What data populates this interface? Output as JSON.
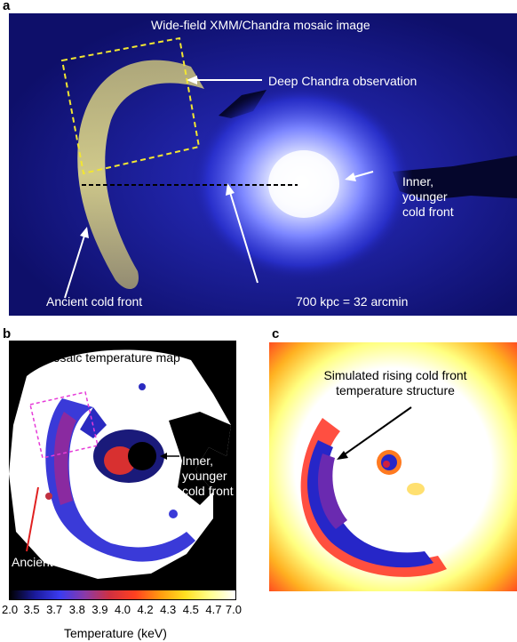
{
  "panel_a": {
    "letter": "a",
    "title": "Wide-field XMM/Chandra mosaic image",
    "label_deep": "Deep Chandra observation",
    "label_inner_1": "Inner,",
    "label_inner_2": "younger",
    "label_inner_3": "cold front",
    "label_ancient": "Ancient cold front",
    "label_scale": "700 kpc = 32 arcmin"
  },
  "panel_b": {
    "letter": "b",
    "title": "Mosaic temperature map",
    "label_inner_1": "Inner,",
    "label_inner_2": "younger",
    "label_inner_3": "cold front",
    "label_ancient": "Ancient cold front"
  },
  "panel_c": {
    "letter": "c",
    "title_1": "Simulated rising cold front",
    "title_2": "temperature structure"
  },
  "colorbar": {
    "ticks": [
      "2.0",
      "3.5",
      "3.7",
      "3.8",
      "3.9",
      "4.0",
      "4.2",
      "4.3",
      "4.5",
      "4.7",
      "7.0"
    ],
    "label": "Temperature (keV)",
    "colors": [
      "#000000",
      "#1a1a9a",
      "#3b3bf0",
      "#8a3aa8",
      "#d03040",
      "#ff4020",
      "#ff9a10",
      "#ffe020",
      "#ffff90",
      "#ffffff"
    ]
  }
}
